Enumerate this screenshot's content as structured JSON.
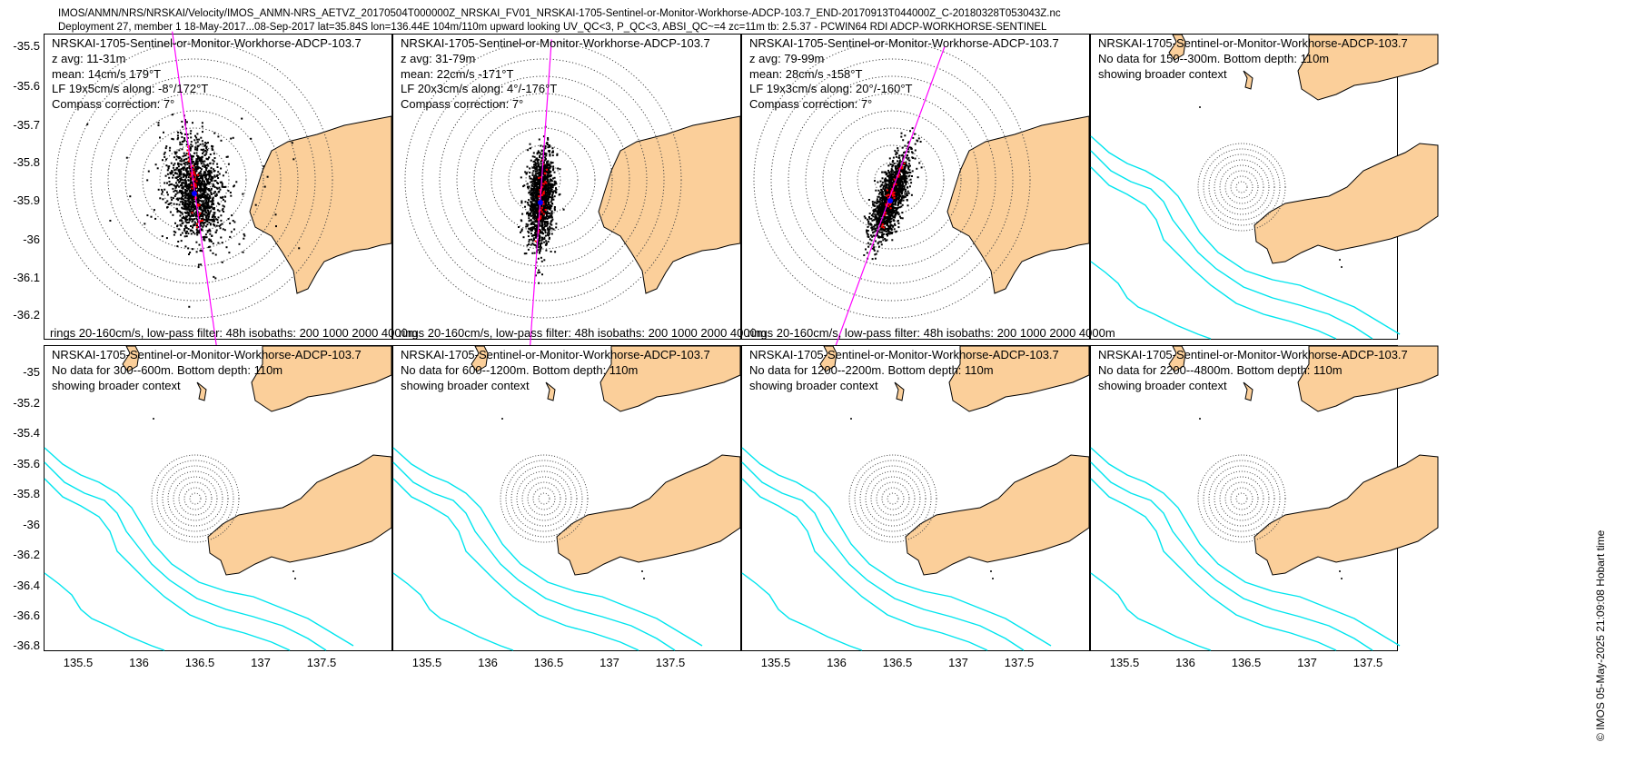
{
  "header": {
    "line1": "IMOS/ANMN/NRS/NRSKAI/Velocity/IMOS_ANMN-NRS_AETVZ_20170504T000000Z_NRSKAI_FV01_NRSKAI-1705-Sentinel-or-Monitor-Workhorse-ADCP-103.7_END-20170913T044000Z_C-20180328T053043Z.nc",
    "line2": "Deployment 27, member 1 18-May-2017...08-Sep-2017 lat=35.84S lon=136.44E 104m/110m upward looking UV_QC<3, P_QC<3, ABSI_QC~=4 zc=11m tb: 2.5.37 - PCWIN64 RDI ADCP-WORKHORSE-SENTINEL"
  },
  "side_label": "© IMOS 05-May-2025 21:09:08 Hobart time",
  "colors": {
    "land": "#fbcf9a",
    "isobath": "#00e5ee",
    "major_axis": "#ff00ff",
    "lowpass": "#ff0000",
    "mean": "#0000ff",
    "rings": "#555555"
  },
  "axes": {
    "x_ticks": [
      "135.5",
      "136",
      "136.5",
      "137",
      "137.5"
    ],
    "top_y_ticks": [
      "-35.5",
      "-35.6",
      "-35.7",
      "-35.8",
      "-35.9",
      "-36",
      "-36.1",
      "-36.2"
    ],
    "bottom_y_ticks": [
      "-35",
      "-35.2",
      "-35.4",
      "-35.6",
      "-35.8",
      "-36",
      "-36.2",
      "-36.4",
      "-36.6",
      "-36.8"
    ]
  },
  "panels": [
    {
      "id": "p1",
      "title": "NRSKAI-1705-Sentinel-or-Monitor-Workhorse-ADCP-103.7",
      "lines": [
        "z avg: 11-31m",
        "mean: 14cm/s 179°T",
        "LF 19x5cm/s along: -8°/172°T",
        "Compass correction: 7°"
      ],
      "footer": "rings 20-160cm/s, low-pass filter: 48h isobaths: 200 1000 2000 4000m",
      "has_data": true,
      "axis_bearing_deg": -8,
      "depth_m": "11-31"
    },
    {
      "id": "p2",
      "title": "NRSKAI-1705-Sentinel-or-Monitor-Workhorse-ADCP-103.7",
      "lines": [
        "z avg: 31-79m",
        "mean: 22cm/s -171°T",
        "LF 20x3cm/s along: 4°/-176°T",
        "Compass correction: 7°"
      ],
      "footer": "rings 20-160cm/s, low-pass filter: 48h isobaths: 200 1000 2000 4000m",
      "has_data": true,
      "axis_bearing_deg": 4,
      "depth_m": "31-79"
    },
    {
      "id": "p3",
      "title": "NRSKAI-1705-Sentinel-or-Monitor-Workhorse-ADCP-103.7",
      "lines": [
        "z avg: 79-99m",
        "mean: 28cm/s -158°T",
        "LF 19x3cm/s along: 20°/-160°T",
        "Compass correction: 7°"
      ],
      "footer": "rings 20-160cm/s, low-pass filter: 48h isobaths: 200 1000 2000 4000m",
      "has_data": true,
      "axis_bearing_deg": 20,
      "depth_m": "79-99"
    },
    {
      "id": "p4",
      "title": "NRSKAI-1705-Sentinel-or-Monitor-Workhorse-ADCP-103.7",
      "lines": [
        "No data for 150--300m. Bottom depth: 110m",
        "showing broader context"
      ],
      "has_data": false
    },
    {
      "id": "p5",
      "title": "NRSKAI-1705-Sentinel-or-Monitor-Workhorse-ADCP-103.7",
      "lines": [
        "No data for 300--600m. Bottom depth: 110m",
        "showing broader context"
      ],
      "has_data": false
    },
    {
      "id": "p6",
      "title": "NRSKAI-1705-Sentinel-or-Monitor-Workhorse-ADCP-103.7",
      "lines": [
        "No data for 600--1200m. Bottom depth: 110m",
        "showing broader context"
      ],
      "has_data": false
    },
    {
      "id": "p7",
      "title": "NRSKAI-1705-Sentinel-or-Monitor-Workhorse-ADCP-103.7",
      "lines": [
        "No data for 1200--2200m. Bottom depth: 110m",
        "showing broader context"
      ],
      "has_data": false
    },
    {
      "id": "p8",
      "title": "NRSKAI-1705-Sentinel-or-Monitor-Workhorse-ADCP-103.7",
      "lines": [
        "No data for 2200--4800m. Bottom depth: 110m",
        "showing broader context"
      ],
      "has_data": false
    }
  ]
}
